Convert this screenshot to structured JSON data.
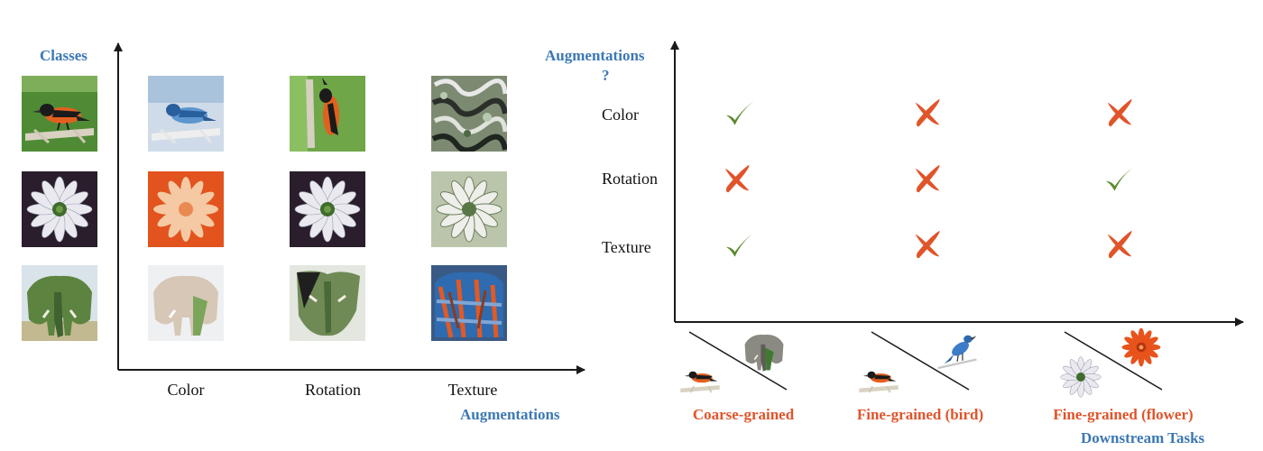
{
  "left_panel": {
    "y_axis_title": "Classes",
    "x_axis_title": "Augmentations",
    "columns": [
      "Color",
      "Rotation",
      "Texture"
    ],
    "rows": [
      {
        "class": "bird",
        "original": "orange-bird-image",
        "augmented": [
          "blue-bird-image",
          "rotated-bird-image",
          "bird-texture-image"
        ]
      },
      {
        "class": "flower",
        "original": "white-daisy-image",
        "augmented": [
          "orange-daisy-image",
          "rotated-daisy-image",
          "daisy-texture-image"
        ]
      },
      {
        "class": "elephant",
        "original": "elephant-image",
        "augmented": [
          "faded-elephant-image",
          "rotated-elephant-image",
          "elephant-texture-image"
        ]
      }
    ]
  },
  "right_panel": {
    "y_axis_title_line1": "Augmentations",
    "y_axis_title_line2": "?",
    "x_axis_title": "Downstream Tasks",
    "rows": [
      "Color",
      "Rotation",
      "Texture"
    ],
    "tasks": [
      "Coarse-grained",
      "Fine-grained (bird)",
      "Fine-grained (flower)"
    ],
    "matrix": [
      [
        "check",
        "cross",
        "cross"
      ],
      [
        "cross",
        "cross",
        "check"
      ],
      [
        "check",
        "cross",
        "cross"
      ]
    ],
    "task_icons": [
      [
        "orange-bird-image",
        "elephant-image"
      ],
      [
        "orange-bird-image",
        "blue-bird-image"
      ],
      [
        "white-daisy-image",
        "orange-daisy-image"
      ]
    ]
  },
  "colors": {
    "axis_title": "#3c78b4",
    "task_label": "#e0542a",
    "check": "#5a8a2c",
    "cross": "#e0542a",
    "axis": "#1a1a1a"
  }
}
